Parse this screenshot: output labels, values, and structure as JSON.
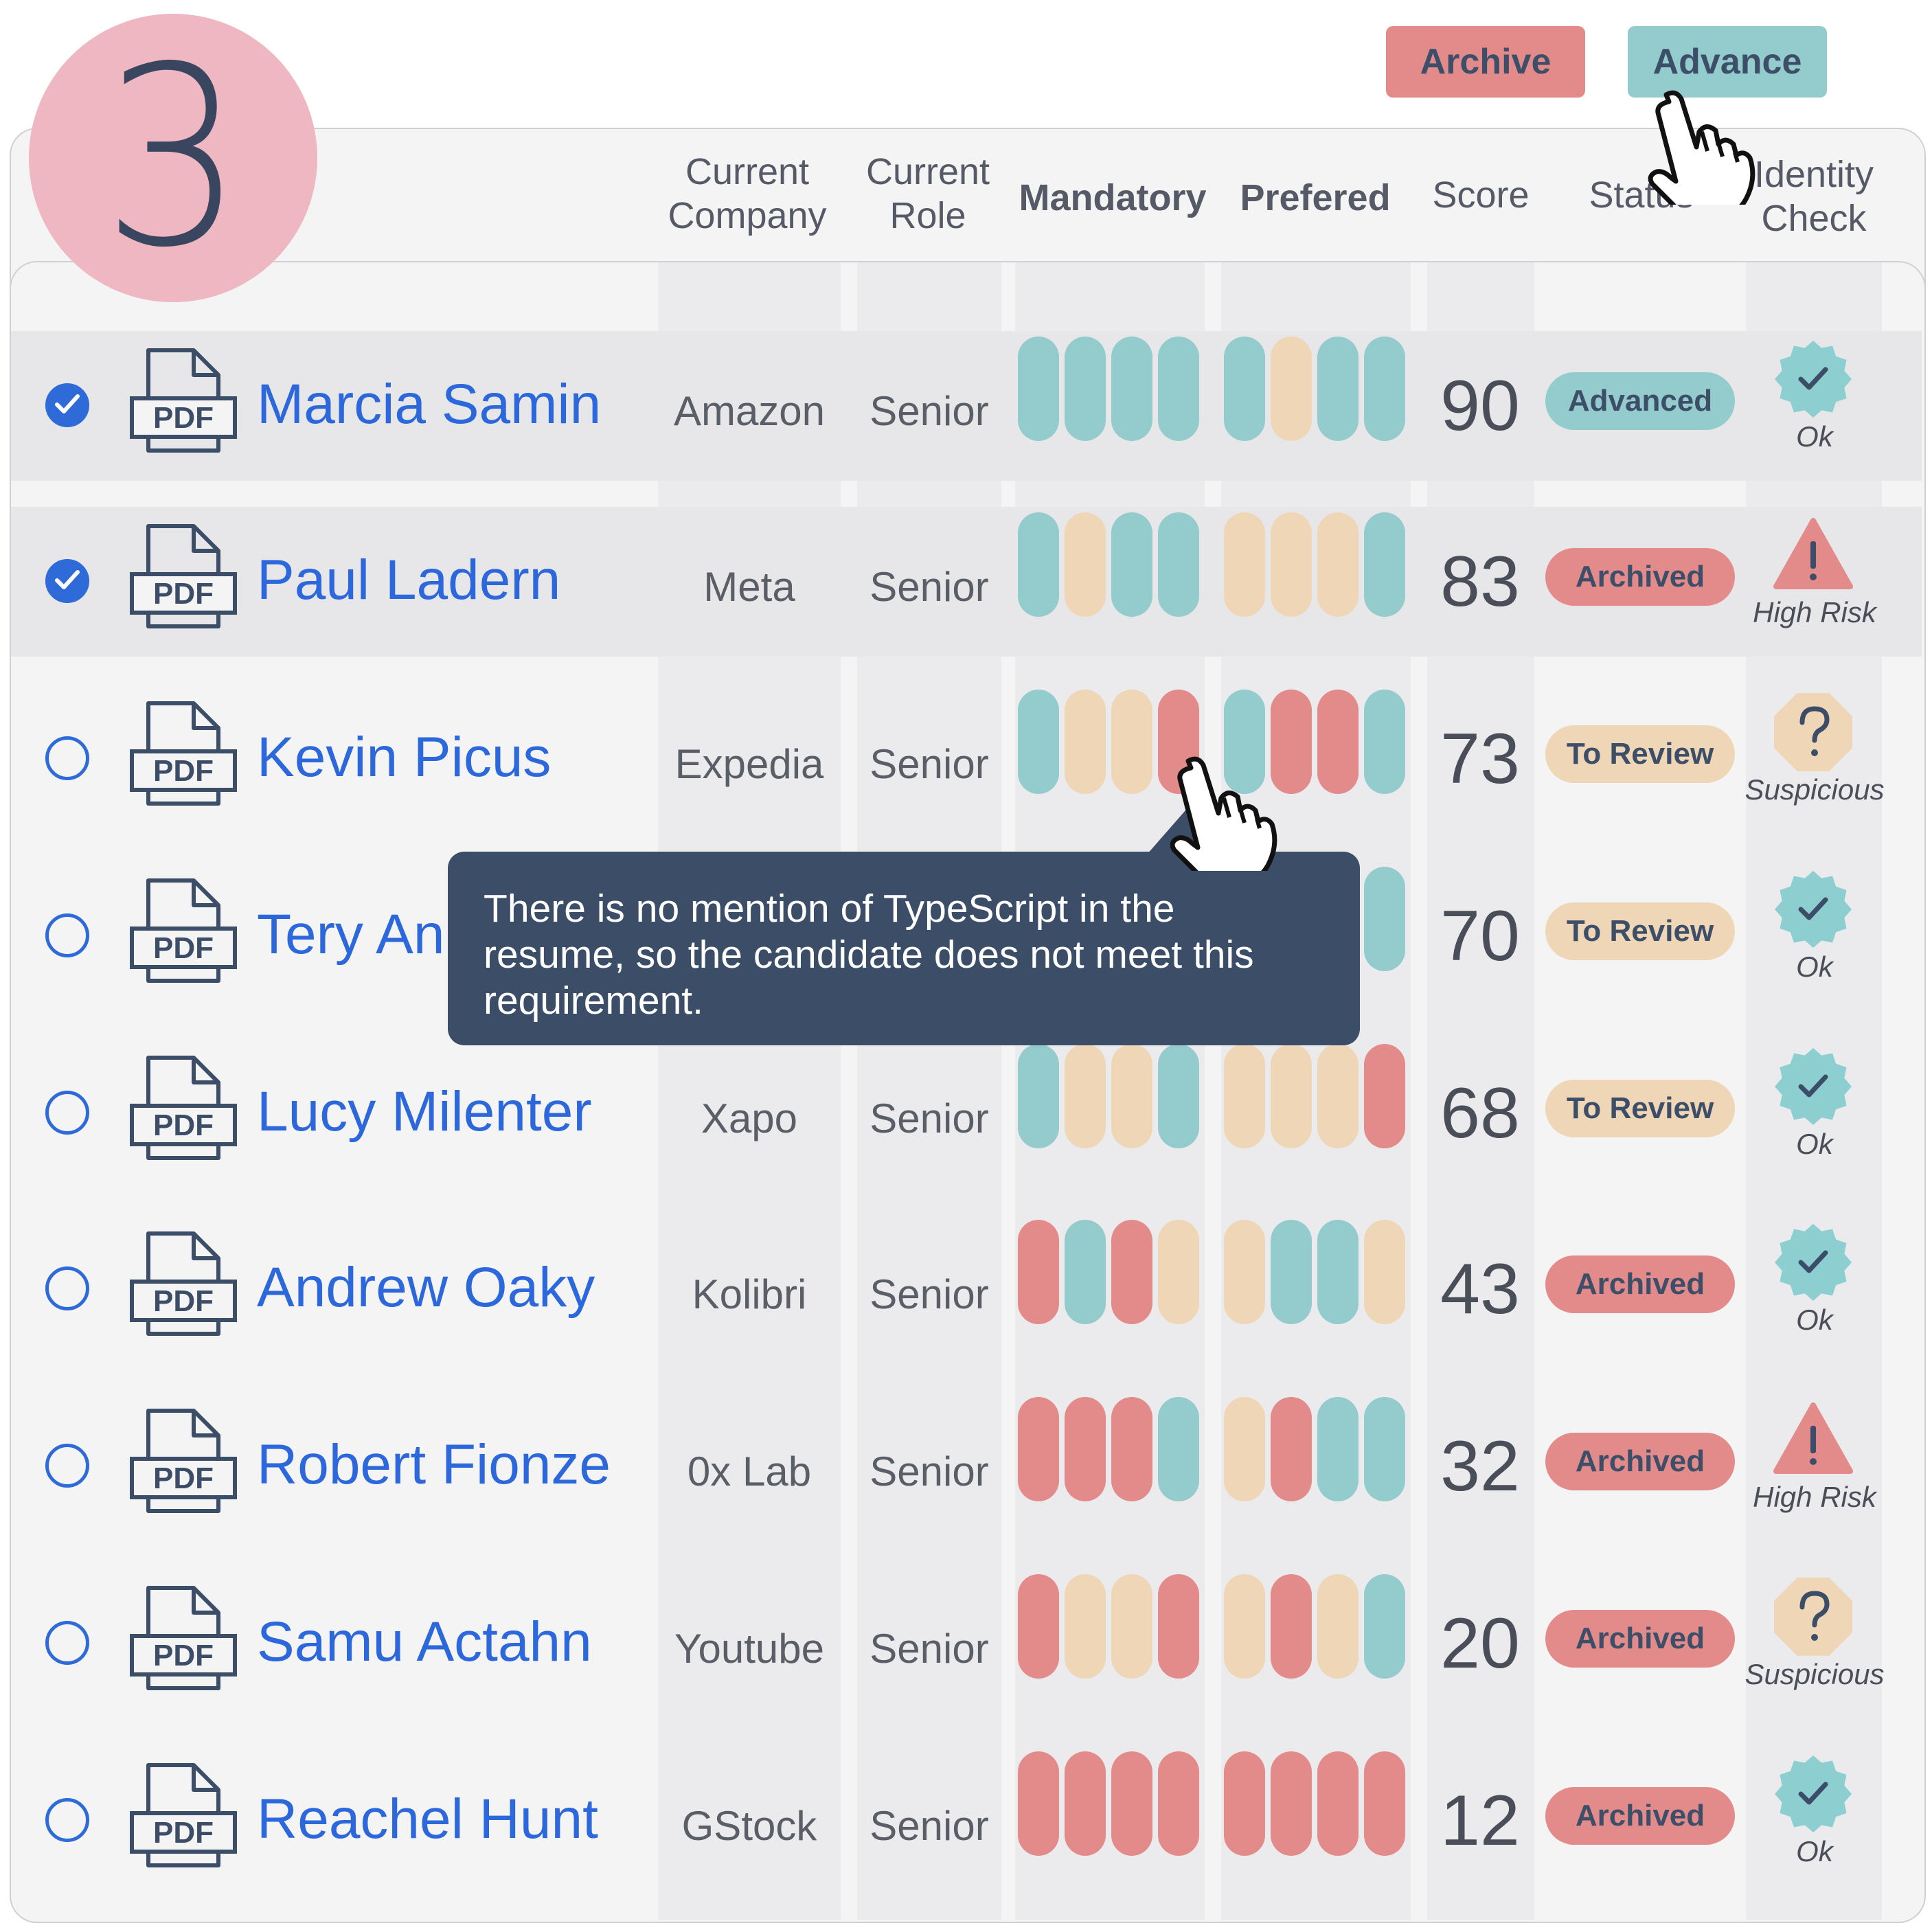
{
  "step_number": "3",
  "actions": {
    "archive_label": "Archive",
    "advance_label": "Advance"
  },
  "columns": {
    "company": [
      "Current",
      "Company"
    ],
    "role": [
      "Current",
      "Role"
    ],
    "mandatory": "Mandatory",
    "prefered": "Prefered",
    "score": "Score",
    "status": "Status",
    "identity": [
      "Identity",
      "Check"
    ]
  },
  "pdf_label": "PDF",
  "colors": {
    "teal": "#94cbcc",
    "beige": "#efd6b6",
    "red": "#e38b8b",
    "link_blue": "#2c67dc",
    "tooltip_bg": "#3c4d68"
  },
  "candidates": [
    {
      "name": "Marcia Samin",
      "company": "Amazon",
      "role": "Senior",
      "mandatory": [
        "teal",
        "teal",
        "teal",
        "teal"
      ],
      "prefered": [
        "teal",
        "beige",
        "teal",
        "teal"
      ],
      "score": "90",
      "status": "Advanced",
      "identity": "Ok",
      "identity_icon": "check-badge-icon",
      "selected": true
    },
    {
      "name": "Paul Ladern",
      "company": "Meta",
      "role": "Senior",
      "mandatory": [
        "teal",
        "beige",
        "teal",
        "teal"
      ],
      "prefered": [
        "beige",
        "beige",
        "beige",
        "teal"
      ],
      "score": "83",
      "status": "Archived",
      "identity": "High Risk",
      "identity_icon": "warning-triangle-icon",
      "selected": true
    },
    {
      "name": "Kevin Picus",
      "company": "Expedia",
      "role": "Senior",
      "mandatory": [
        "teal",
        "beige",
        "beige",
        "red"
      ],
      "prefered": [
        "teal",
        "red",
        "red",
        "teal"
      ],
      "score": "73",
      "status": "To Review",
      "identity": "Suspicious",
      "identity_icon": "question-octagon-icon",
      "selected": false
    },
    {
      "name": "Tery An",
      "company": "",
      "role": "",
      "mandatory": [
        "teal",
        "teal",
        "teal",
        "teal"
      ],
      "prefered": [
        "teal",
        "teal",
        "teal",
        "teal"
      ],
      "score": "70",
      "status": "To Review",
      "identity": "Ok",
      "identity_icon": "check-badge-icon",
      "selected": false
    },
    {
      "name": "Lucy Milenter",
      "company": "Xapo",
      "role": "Senior",
      "mandatory": [
        "teal",
        "beige",
        "beige",
        "teal"
      ],
      "prefered": [
        "beige",
        "beige",
        "beige",
        "red"
      ],
      "score": "68",
      "status": "To Review",
      "identity": "Ok",
      "identity_icon": "check-badge-icon",
      "selected": false
    },
    {
      "name": "Andrew Oaky",
      "company": "Kolibri",
      "role": "Senior",
      "mandatory": [
        "red",
        "teal",
        "red",
        "beige"
      ],
      "prefered": [
        "beige",
        "teal",
        "teal",
        "beige"
      ],
      "score": "43",
      "status": "Archived",
      "identity": "Ok",
      "identity_icon": "check-badge-icon",
      "selected": false
    },
    {
      "name": "Robert Fionze",
      "company": "0x Lab",
      "role": "Senior",
      "mandatory": [
        "red",
        "red",
        "red",
        "teal"
      ],
      "prefered": [
        "beige",
        "red",
        "teal",
        "teal"
      ],
      "score": "32",
      "status": "Archived",
      "identity": "High Risk",
      "identity_icon": "warning-triangle-icon",
      "selected": false
    },
    {
      "name": "Samu Actahn",
      "company": "Youtube",
      "role": "Senior",
      "mandatory": [
        "red",
        "beige",
        "beige",
        "red"
      ],
      "prefered": [
        "beige",
        "red",
        "beige",
        "teal"
      ],
      "score": "20",
      "status": "Archived",
      "identity": "Suspicious",
      "identity_icon": "question-octagon-icon",
      "selected": false
    },
    {
      "name": "Reachel Hunt",
      "company": "GStock",
      "role": "Senior",
      "mandatory": [
        "red",
        "red",
        "red",
        "red"
      ],
      "prefered": [
        "red",
        "red",
        "red",
        "red"
      ],
      "score": "12",
      "status": "Archived",
      "identity": "Ok",
      "identity_icon": "check-badge-icon",
      "selected": false
    }
  ],
  "status_colors": {
    "Advanced": "#94cbcc",
    "Archived": "#e38b8b",
    "To Review": "#efd6b6"
  },
  "tooltip": {
    "lines": [
      "There is no mention of TypeScript in the",
      "resume, so the candidate does not meet this",
      "requirement."
    ]
  }
}
